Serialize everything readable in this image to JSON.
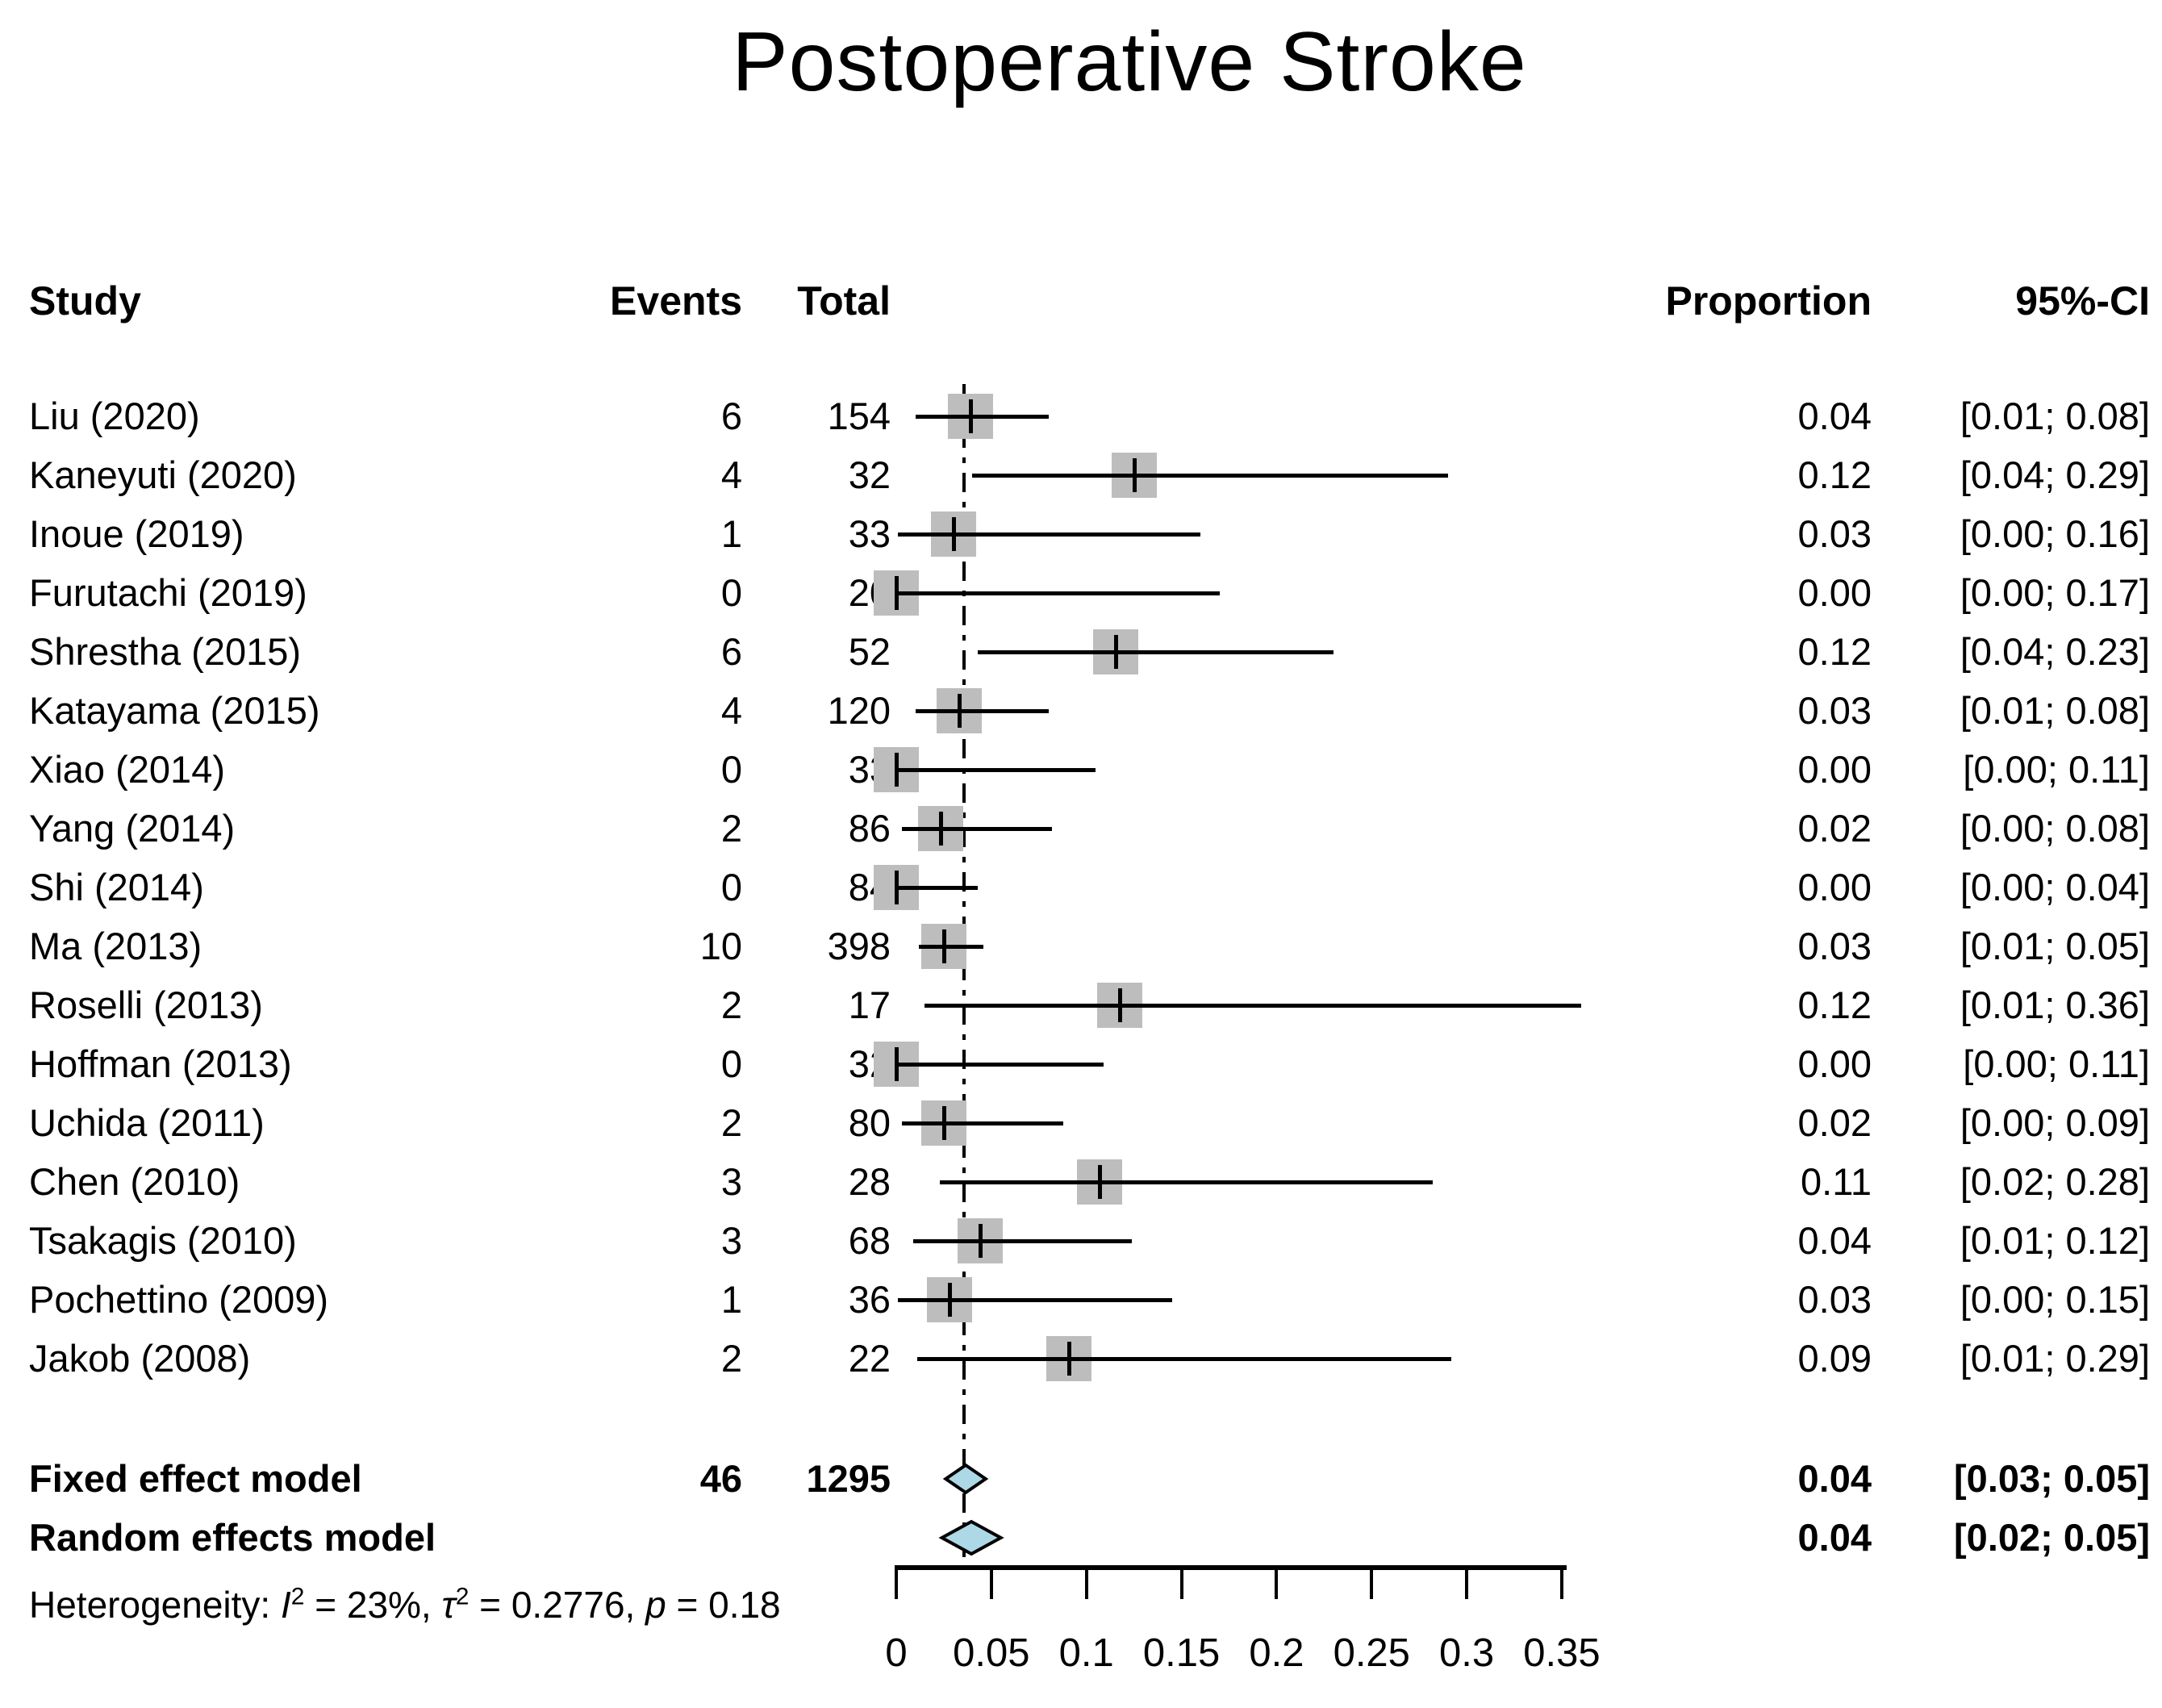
{
  "title": "Postoperative Stroke",
  "table": {
    "headers": {
      "study": "Study",
      "events": "Events",
      "total": "Total",
      "proportion": "Proportion",
      "ci": "95%-CI"
    }
  },
  "chart_data": {
    "type": "forest",
    "title": "Postoperative Stroke",
    "x_axis": {
      "tick_values": [
        0,
        0.05,
        0.1,
        0.15,
        0.2,
        0.25,
        0.3,
        0.35
      ],
      "tick_labels": [
        "0",
        "0.05",
        "0.1",
        "0.15",
        "0.2",
        "0.25",
        "0.3",
        "0.35"
      ],
      "range": [
        0,
        0.36
      ],
      "grid": false
    },
    "reference_line_value": 0.0355,
    "studies": [
      {
        "study": "Liu (2020)",
        "events": "6",
        "total": "154",
        "proportion": "0.04",
        "ci": "[0.01; 0.08]",
        "est": 0.039,
        "lo": 0.01,
        "hi": 0.08
      },
      {
        "study": "Kaneyuti (2020)",
        "events": "4",
        "total": "32",
        "proportion": "0.12",
        "ci": "[0.04; 0.29]",
        "est": 0.125,
        "lo": 0.04,
        "hi": 0.29
      },
      {
        "study": "Inoue (2019)",
        "events": "1",
        "total": "33",
        "proportion": "0.03",
        "ci": "[0.00; 0.16]",
        "est": 0.0303,
        "lo": 0.001,
        "hi": 0.16
      },
      {
        "study": "Furutachi (2019)",
        "events": "0",
        "total": "20",
        "proportion": "0.00",
        "ci": "[0.00; 0.17]",
        "est": 0.0,
        "lo": 0.0,
        "hi": 0.17
      },
      {
        "study": "Shrestha (2015)",
        "events": "6",
        "total": "52",
        "proportion": "0.12",
        "ci": "[0.04; 0.23]",
        "est": 0.1154,
        "lo": 0.043,
        "hi": 0.23
      },
      {
        "study": "Katayama (2015)",
        "events": "4",
        "total": "120",
        "proportion": "0.03",
        "ci": "[0.01; 0.08]",
        "est": 0.0333,
        "lo": 0.01,
        "hi": 0.08
      },
      {
        "study": "Xiao (2014)",
        "events": "0",
        "total": "33",
        "proportion": "0.00",
        "ci": "[0.00; 0.11]",
        "est": 0.0,
        "lo": 0.0,
        "hi": 0.105
      },
      {
        "study": "Yang (2014)",
        "events": "2",
        "total": "86",
        "proportion": "0.02",
        "ci": "[0.00; 0.08]",
        "est": 0.0233,
        "lo": 0.003,
        "hi": 0.082
      },
      {
        "study": "Shi (2014)",
        "events": "0",
        "total": "84",
        "proportion": "0.00",
        "ci": "[0.00; 0.04]",
        "est": 0.0,
        "lo": 0.0,
        "hi": 0.043
      },
      {
        "study": "Ma (2013)",
        "events": "10",
        "total": "398",
        "proportion": "0.03",
        "ci": "[0.01; 0.05]",
        "est": 0.0251,
        "lo": 0.012,
        "hi": 0.046
      },
      {
        "study": "Roselli (2013)",
        "events": "2",
        "total": "17",
        "proportion": "0.12",
        "ci": "[0.01; 0.36]",
        "est": 0.1176,
        "lo": 0.015,
        "hi": 0.36
      },
      {
        "study": "Hoffman (2013)",
        "events": "0",
        "total": "32",
        "proportion": "0.00",
        "ci": "[0.00; 0.11]",
        "est": 0.0,
        "lo": 0.0,
        "hi": 0.109
      },
      {
        "study": "Uchida (2011)",
        "events": "2",
        "total": "80",
        "proportion": "0.02",
        "ci": "[0.00; 0.09]",
        "est": 0.025,
        "lo": 0.003,
        "hi": 0.088
      },
      {
        "study": "Chen (2010)",
        "events": "3",
        "total": "28",
        "proportion": "0.11",
        "ci": "[0.02; 0.28]",
        "est": 0.1071,
        "lo": 0.023,
        "hi": 0.282
      },
      {
        "study": "Tsakagis (2010)",
        "events": "3",
        "total": "68",
        "proportion": "0.04",
        "ci": "[0.01; 0.12]",
        "est": 0.0441,
        "lo": 0.009,
        "hi": 0.124
      },
      {
        "study": "Pochettino (2009)",
        "events": "1",
        "total": "36",
        "proportion": "0.03",
        "ci": "[0.00; 0.15]",
        "est": 0.0278,
        "lo": 0.001,
        "hi": 0.145
      },
      {
        "study": "Jakob (2008)",
        "events": "2",
        "total": "22",
        "proportion": "0.09",
        "ci": "[0.01; 0.29]",
        "est": 0.0909,
        "lo": 0.011,
        "hi": 0.292
      }
    ],
    "summaries": [
      {
        "label": "Fixed effect model",
        "events": "46",
        "total": "1295",
        "proportion": "0.04",
        "ci": "[0.03; 0.05]",
        "lo": 0.026,
        "hi": 0.047
      },
      {
        "label": "Random effects model",
        "events": "",
        "total": "",
        "proportion": "0.04",
        "ci": "[0.02; 0.05]",
        "lo": 0.024,
        "hi": 0.055
      }
    ],
    "heterogeneity_parts": [
      {
        "t": "Heterogeneity: ",
        "s": "n"
      },
      {
        "t": "I",
        "s": "i"
      },
      {
        "t": "2",
        "s": "sup"
      },
      {
        "t": " = 23%, ",
        "s": "n"
      },
      {
        "t": "τ",
        "s": "i"
      },
      {
        "t": "2",
        "s": "sup"
      },
      {
        "t": " = 0.2776, ",
        "s": "n"
      },
      {
        "t": "p",
        "s": "i"
      },
      {
        "t": " = 0.18",
        "s": "n"
      }
    ],
    "colors": {
      "square": "#BDBDBD",
      "diamond_fill": "#ADD8E6",
      "diamond_stroke": "#000000",
      "line": "#000000",
      "text": "#000000"
    }
  }
}
